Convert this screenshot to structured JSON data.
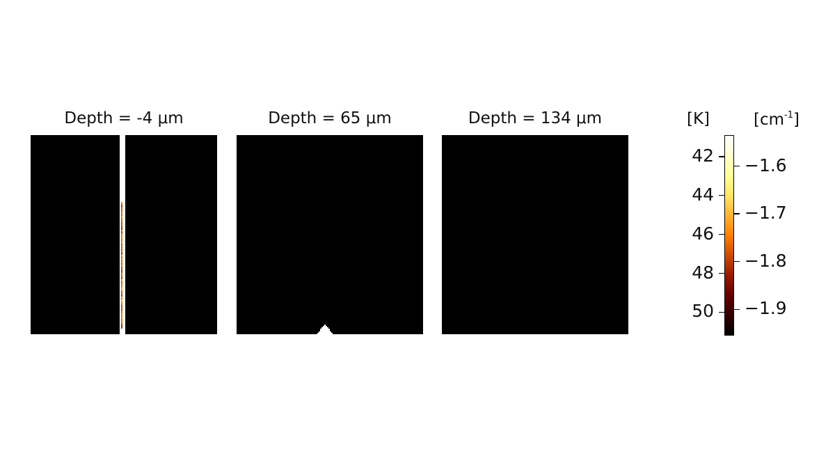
{
  "chart_data": {
    "type": "heatmap",
    "panels": [
      {
        "title": "Depth = -4 μm"
      },
      {
        "title": "Depth = 65 μm"
      },
      {
        "title": "Depth = 134 μm"
      }
    ],
    "colorbar": {
      "colormap": "afmhot",
      "units_left": "[K]",
      "units_right_base": "[cm",
      "units_right_sup": "-1",
      "units_right_close": "]",
      "ticks_left": [
        "42",
        "44",
        "46",
        "48",
        "50"
      ],
      "ticks_right": [
        "−1.6",
        "−1.7",
        "−1.8",
        "−1.9"
      ],
      "range_left": [
        40.9,
        51.2
      ],
      "range_right": [
        -1.535,
        -1.955
      ]
    }
  }
}
